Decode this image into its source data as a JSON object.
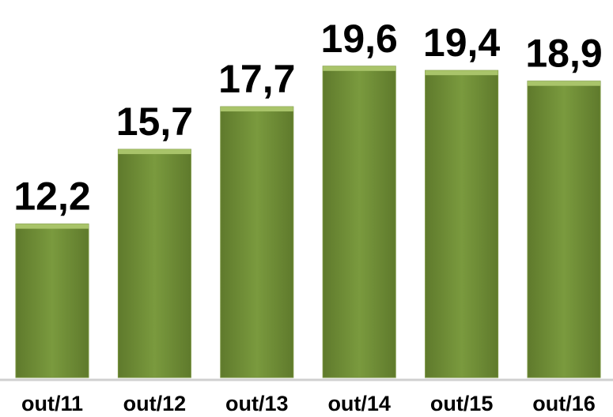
{
  "chart_data": {
    "type": "bar",
    "categories": [
      "out/11",
      "out/12",
      "out/13",
      "out/14",
      "out/15",
      "out/16"
    ],
    "values": [
      12.2,
      15.7,
      17.7,
      19.6,
      19.4,
      18.9
    ],
    "value_labels": [
      "12,2",
      "15,7",
      "17,7",
      "19,6",
      "19,4",
      "18,9"
    ],
    "color": "#76923c",
    "ylim": [
      5,
      21
    ]
  }
}
